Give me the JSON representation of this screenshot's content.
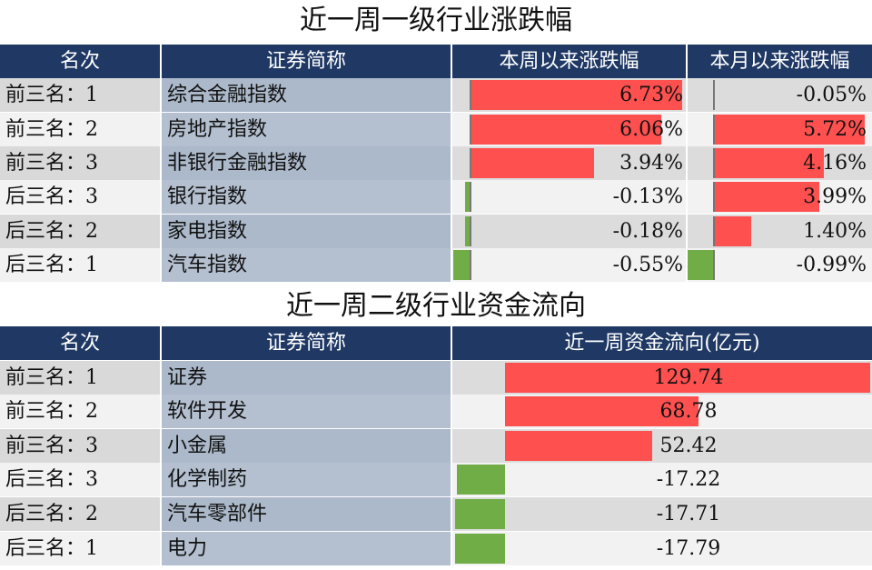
{
  "chart_data": [
    {
      "type": "table",
      "title": "近一周一级行业涨跌幅",
      "headers": [
        "名次",
        "证券简称",
        "本周以来涨跌幅",
        "本月以来涨跌幅"
      ],
      "rows": [
        {
          "rank": "前三名：1",
          "name": "综合金融指数",
          "week": 6.73,
          "week_label": "6.73%",
          "month": -0.05,
          "month_label": "-0.05%"
        },
        {
          "rank": "前三名：2",
          "name": "房地产指数",
          "week": 6.06,
          "week_label": "6.06%",
          "month": 5.72,
          "month_label": "5.72%"
        },
        {
          "rank": "前三名：3",
          "name": "非银行金融指数",
          "week": 3.94,
          "week_label": "3.94%",
          "month": 4.16,
          "month_label": "4.16%"
        },
        {
          "rank": "后三名：3",
          "name": "银行指数",
          "week": -0.13,
          "week_label": "-0.13%",
          "month": 3.99,
          "month_label": "3.99%"
        },
        {
          "rank": "后三名：2",
          "name": "家电指数",
          "week": -0.18,
          "week_label": "-0.18%",
          "month": 1.4,
          "month_label": "1.40%"
        },
        {
          "rank": "后三名：1",
          "name": "汽车指数",
          "week": -0.55,
          "week_label": "-0.55%",
          "month": -0.99,
          "month_label": "-0.99%"
        }
      ],
      "colors": {
        "positive": "#ff5050",
        "negative": "#70ad47",
        "header": "#1f3864"
      }
    },
    {
      "type": "table",
      "title": "近一周二级行业资金流向",
      "headers": [
        "名次",
        "证券简称",
        "近一周资金流向(亿元)"
      ],
      "rows": [
        {
          "rank": "前三名：1",
          "name": "证券",
          "flow": 129.74,
          "flow_label": "129.74"
        },
        {
          "rank": "前三名：2",
          "name": "软件开发",
          "flow": 68.78,
          "flow_label": "68.78"
        },
        {
          "rank": "前三名：3",
          "name": "小金属",
          "flow": 52.42,
          "flow_label": "52.42"
        },
        {
          "rank": "后三名：3",
          "name": "化学制药",
          "flow": -17.22,
          "flow_label": "-17.22"
        },
        {
          "rank": "后三名：2",
          "name": "汽车零部件",
          "flow": -17.71,
          "flow_label": "-17.71"
        },
        {
          "rank": "后三名：1",
          "name": "电力",
          "flow": -17.79,
          "flow_label": "-17.79"
        }
      ],
      "colors": {
        "positive": "#ff5050",
        "negative": "#70ad47",
        "header": "#1f3864"
      }
    }
  ]
}
